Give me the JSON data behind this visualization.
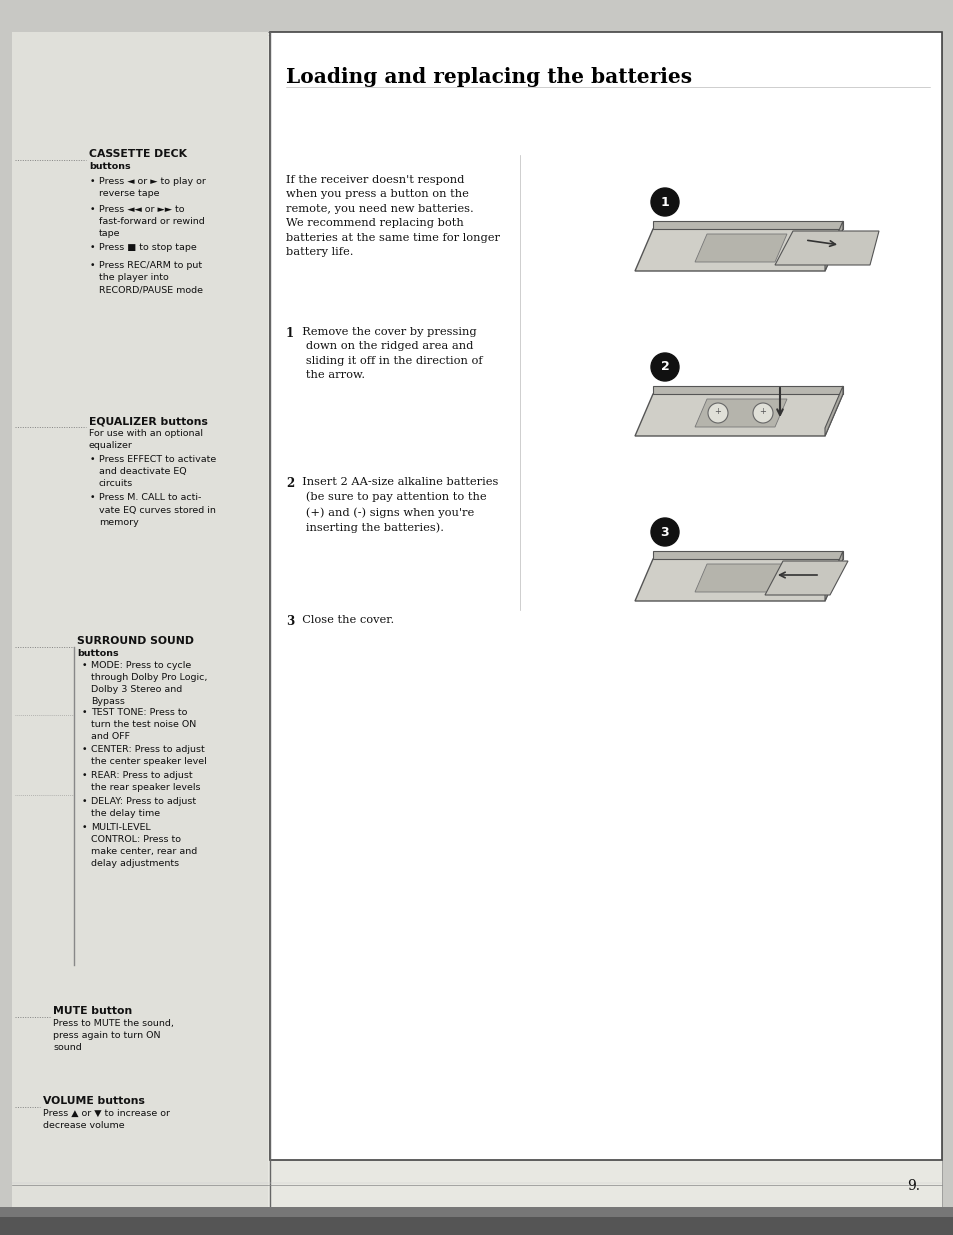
{
  "page_bg": "#c8c8c4",
  "main_bg": "#e8e8e2",
  "left_bg": "#e0e0da",
  "right_bg": "#ffffff",
  "title": "Loading and replacing the batteries",
  "page_number": "9.",
  "right_text_intro": "If the receiver doesn't respond\nwhen you press a button on the\nremote, you need new batteries.\nWe recommend replacing both\nbatteries at the same time for longer\nbattery life.",
  "step1_bold": "1",
  "step1_text": "  Remove the cover by pressing\n   down on the ridged area and\n   sliding it off in the direction of\n   the arrow.",
  "step2_bold": "2",
  "step2_text": "  Insert 2 AA-size alkaline batteries\n   (be sure to pay attention to the\n   (+) and (-) signs when you're\n   inserting the batteries).",
  "step3_bold": "3",
  "step3_text": "  Close the cover.",
  "cassette_header": "CASSETTE DECK",
  "cassette_sub": "buttons",
  "cassette_items": [
    "Press ◄ or ► to play or\nreverse tape",
    "Press ◄◄ or ►► to\nfast-forward or rewind\ntape",
    "Press ■ to stop tape",
    "Press REC/ARM to put\nthe player into\nRECORD/PAUSE mode"
  ],
  "equalizer_header": "EQUALIZER buttons",
  "equalizer_sub": "For use with an optional\nequalizer",
  "equalizer_items": [
    "Press EFFECT to activate\nand deactivate EQ\ncircuits",
    "Press M. CALL to acti-\nvate EQ curves stored in\nmemory"
  ],
  "surround_header": "SURROUND SOUND",
  "surround_sub": "buttons",
  "surround_items": [
    "MODE: Press to cycle\nthrough Dolby Pro Logic,\nDolby 3 Stereo and\nBypass",
    "TEST TONE: Press to\nturn the test noise ON\nand OFF",
    "CENTER: Press to adjust\nthe center speaker level",
    "REAR: Press to adjust\nthe rear speaker levels",
    "DELAY: Press to adjust\nthe delay time",
    "MULTI-LEVEL\nCONTROL: Press to\nmake center, rear and\ndelay adjustments"
  ],
  "mute_header": "MUTE button",
  "mute_text": "Press to MUTE the sound,\npress again to turn ON\nsound",
  "volume_header": "VOLUME buttons",
  "volume_text": "Press ▲ or ▼ to increase or\ndecrease volume"
}
